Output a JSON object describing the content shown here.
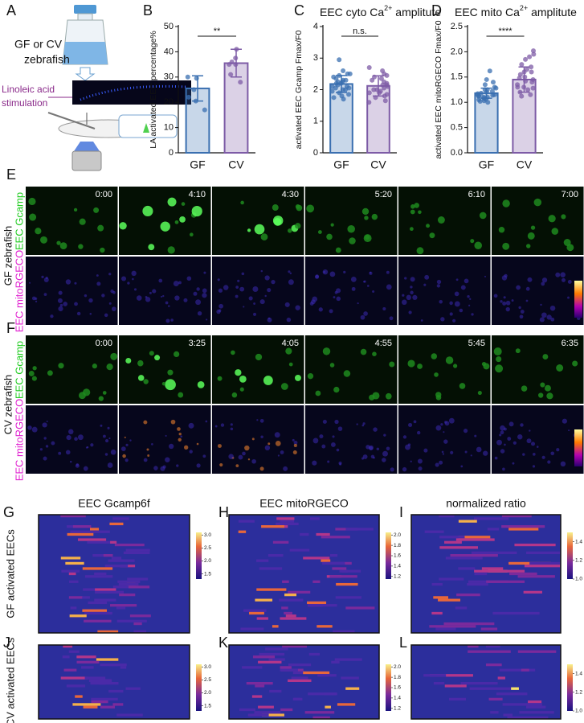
{
  "panel_a": {
    "label": "A",
    "culture": "GF or CV",
    "fish": "zebrafish",
    "stimulus_1": "Linoleic acid",
    "stimulus_2": "stimulation"
  },
  "chart_data": [
    {
      "type": "bar",
      "panel_label": "B",
      "ylabel": "LA activated EEC percentage%",
      "categories": [
        "GF",
        "CV"
      ],
      "values": [
        25.5,
        35.5
      ],
      "errors": [
        5,
        5.5
      ],
      "points": [
        [
          30,
          29.5,
          25,
          22,
          17,
          20.5
        ],
        [
          41,
          37.5,
          35,
          36,
          31,
          28,
          35
        ]
      ],
      "ylim": [
        0,
        50
      ],
      "yticks": [
        0,
        10,
        20,
        30,
        40,
        50
      ],
      "significance": "**",
      "colors": [
        "#3a6fb0",
        "#7d5ba6"
      ]
    },
    {
      "type": "bar",
      "panel_label": "C",
      "title": {
        "text": "EEC cyto Ca",
        "sup": "2+",
        "rest": " amplitute"
      },
      "ylabel": "activated EEC Gcamp Fmax/F0",
      "categories": [
        "GF",
        "CV"
      ],
      "values": [
        2.18,
        2.12
      ],
      "errors": [
        0.27,
        0.32
      ],
      "points": [
        [
          2.95,
          2.6,
          2.5,
          2.45,
          2.4,
          2.35,
          2.3,
          2.3,
          2.25,
          2.2,
          2.2,
          2.15,
          2.1,
          2.1,
          2.05,
          2.0,
          2.0,
          1.95,
          1.9,
          1.85,
          1.8,
          1.75,
          1.7,
          2.5,
          2.25,
          2.05
        ],
        [
          2.7,
          2.6,
          2.5,
          2.45,
          2.4,
          2.3,
          2.25,
          2.2,
          2.15,
          2.1,
          2.05,
          2.0,
          2.0,
          1.95,
          1.9,
          1.85,
          1.8,
          1.75,
          1.65,
          1.6,
          2.35,
          2.15,
          1.9
        ]
      ],
      "ylim": [
        0,
        4
      ],
      "yticks": [
        0,
        1,
        2,
        3,
        4
      ],
      "significance": "n.s.",
      "colors": [
        "#3a6fb0",
        "#7d5ba6"
      ]
    },
    {
      "type": "bar",
      "panel_label": "D",
      "title": {
        "text": "EEC mito Ca",
        "sup": "2+",
        "rest": " amplitute"
      },
      "ylabel": "activated EEC mitoRGECO Fmax/F0",
      "categories": [
        "GF",
        "CV"
      ],
      "values": [
        1.18,
        1.45
      ],
      "errors": [
        0.1,
        0.25
      ],
      "points": [
        [
          1.62,
          1.45,
          1.4,
          1.35,
          1.3,
          1.28,
          1.25,
          1.22,
          1.2,
          1.18,
          1.17,
          1.15,
          1.14,
          1.12,
          1.1,
          1.1,
          1.08,
          1.06,
          1.05,
          1.03,
          1.02,
          1.0,
          1.25,
          1.15,
          1.12
        ],
        [
          2.02,
          1.95,
          1.9,
          1.85,
          1.75,
          1.7,
          1.65,
          1.6,
          1.55,
          1.5,
          1.48,
          1.45,
          1.42,
          1.4,
          1.35,
          1.3,
          1.28,
          1.25,
          1.2,
          1.15,
          1.12,
          1.6,
          1.3
        ]
      ],
      "ylim": [
        0,
        2.5
      ],
      "yticks": [
        {
          "value": 0,
          "label": "0.0"
        },
        0.5,
        {
          "value": 1,
          "label": "1.0"
        },
        1.5,
        {
          "value": 2,
          "label": "2.0"
        },
        2.5
      ],
      "significance": "****",
      "colors": [
        "#3a6fb0",
        "#7d5ba6"
      ]
    },
    {
      "type": "heatmap",
      "panel_label": "G",
      "title": "EEC Gcamp6f",
      "row_label": "GF activated EECs",
      "clim": [
        1.3,
        3.1
      ],
      "cticks": [
        1.5,
        {
          "value": 2,
          "label": "2.0"
        },
        2.5,
        {
          "value": 3,
          "label": "3.0"
        }
      ]
    },
    {
      "type": "heatmap",
      "panel_label": "H",
      "title": "EEC mitoRGECO",
      "clim": [
        1.15,
        2.05
      ],
      "cticks": [
        1.2,
        1.4,
        1.6,
        1.8,
        {
          "value": 2,
          "label": "2.0"
        }
      ]
    },
    {
      "type": "heatmap",
      "panel_label": "I",
      "title": "normalized ratio",
      "clim": [
        1.0,
        1.5
      ],
      "cticks": [
        {
          "value": 1,
          "label": "1.0"
        },
        1.2,
        1.4
      ]
    },
    {
      "type": "heatmap",
      "panel_label": "J",
      "row_label": "CV activated EECs",
      "clim": [
        1.3,
        3.1
      ],
      "cticks": [
        1.5,
        {
          "value": 2,
          "label": "2.0"
        },
        2.5,
        {
          "value": 3,
          "label": "3.0"
        }
      ]
    },
    {
      "type": "heatmap",
      "panel_label": "K",
      "clim": [
        1.15,
        2.05
      ],
      "cticks": [
        1.2,
        1.4,
        1.6,
        1.8,
        {
          "value": 2,
          "label": "2.0"
        }
      ]
    },
    {
      "type": "heatmap",
      "panel_label": "L",
      "clim": [
        1.0,
        1.5
      ],
      "cticks": [
        {
          "value": 1,
          "label": "1.0"
        },
        1.2,
        1.4
      ]
    }
  ],
  "panel_e": {
    "label": "E",
    "group": "GF zebrafish",
    "channels": [
      "EEC Gcamp",
      "EEC mitoRGECO"
    ],
    "times": [
      "0:00",
      "4:10",
      "4:30",
      "5:20",
      "6:10",
      "7:00"
    ]
  },
  "panel_f": {
    "label": "F",
    "group": "CV zebrafish",
    "channels": [
      "EEC Gcamp",
      "EEC mitoRGECO"
    ],
    "times": [
      "0:00",
      "3:25",
      "4:05",
      "4:55",
      "5:45",
      "6:35"
    ]
  }
}
